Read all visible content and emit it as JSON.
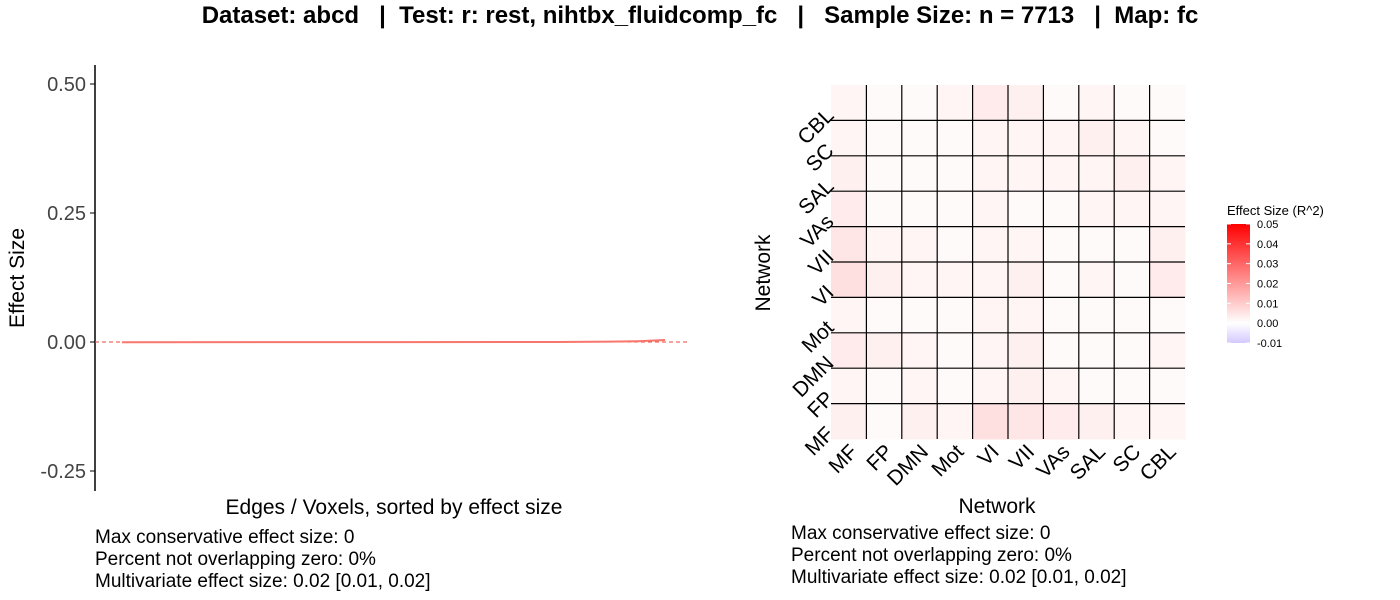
{
  "title": "Dataset: abcd   |  Test: r: rest, nihtbx_fluidcomp_fc   |   Sample Size: n = 7713   |  Map: fc",
  "colors": {
    "line": "#F8766D",
    "zero_line": "#E8483A",
    "grid_line": "#000000",
    "high": "#FF0000",
    "mid": "#FFFFFF",
    "low": "#D5C8FF"
  },
  "chart_data": [
    {
      "type": "line",
      "xlabel": "Edges / Voxels, sorted by effect size",
      "ylabel": "Effect Size",
      "yticks": [
        "0.50",
        "0.25",
        "0.00",
        "-0.25"
      ],
      "ytick_values": [
        0.5,
        0.25,
        0.0,
        -0.25
      ],
      "ylim": [
        -0.25,
        0.5
      ],
      "reference_line": 0,
      "series": [
        {
          "x": [
            0,
            0.5,
            0.8,
            0.9,
            0.95,
            0.98,
            1.0
          ],
          "values": [
            -0.0005,
            -0.0002,
            0.0,
            0.0007,
            0.0015,
            0.003,
            0.004
          ]
        }
      ],
      "captions": [
        "Max conservative effect size: 0",
        "Percent not overlapping zero: 0%",
        "Multivariate effect size: 0.02 [0.01, 0.02]"
      ]
    },
    {
      "type": "heatmap",
      "xlabel": "Network",
      "ylabel": "Network",
      "x_categories": [
        "MF",
        "FP",
        "DMN",
        "Mot",
        "VI",
        "VII",
        "VAs",
        "SAL",
        "SC",
        "CBL"
      ],
      "y_categories": [
        "MF",
        "FP",
        "DMN",
        "Mot",
        "VI",
        "VII",
        "VAs",
        "SAL",
        "SC",
        "CBL"
      ],
      "values": [
        [
          0.003,
          0.001,
          0.003,
          0.002,
          0.006,
          0.005,
          0.004,
          0.003,
          0.002,
          0.002
        ],
        [
          0.002,
          0.001,
          0.002,
          0.001,
          0.002,
          0.003,
          0.002,
          0.001,
          0.001,
          0.001
        ],
        [
          0.004,
          0.003,
          0.002,
          0.001,
          0.002,
          0.003,
          0.001,
          0.001,
          0.001,
          0.002
        ],
        [
          0.002,
          0.001,
          0.001,
          0.001,
          0.002,
          0.002,
          0.001,
          0.001,
          0.001,
          0.001
        ],
        [
          0.006,
          0.003,
          0.002,
          0.002,
          0.002,
          0.003,
          0.001,
          0.002,
          0.001,
          0.004
        ],
        [
          0.005,
          0.002,
          0.002,
          0.001,
          0.002,
          0.002,
          0.001,
          0.001,
          0.001,
          0.003
        ],
        [
          0.004,
          0.001,
          0.001,
          0.001,
          0.002,
          0.001,
          0.001,
          0.002,
          0.002,
          0.002
        ],
        [
          0.003,
          0.001,
          0.001,
          0.001,
          0.002,
          0.002,
          0.002,
          0.002,
          0.003,
          0.002
        ],
        [
          0.002,
          0.001,
          0.001,
          0.001,
          0.002,
          0.002,
          0.002,
          0.003,
          0.002,
          0.001
        ],
        [
          0.002,
          0.001,
          0.001,
          0.002,
          0.004,
          0.003,
          0.001,
          0.002,
          0.001,
          0.001
        ]
      ],
      "legend": {
        "title": "Effect Size (R^2)",
        "ticks": [
          "0.05",
          "0.04",
          "0.03",
          "0.02",
          "0.01",
          "0.00",
          "-0.01"
        ],
        "tick_values": [
          0.05,
          0.04,
          0.03,
          0.02,
          0.01,
          0.0,
          -0.01
        ],
        "range": [
          -0.01,
          0.05
        ],
        "placement": "right"
      },
      "captions": [
        "Max conservative effect size: 0",
        "Percent not overlapping zero: 0%",
        "Multivariate effect size: 0.02 [0.01, 0.02]"
      ]
    }
  ]
}
